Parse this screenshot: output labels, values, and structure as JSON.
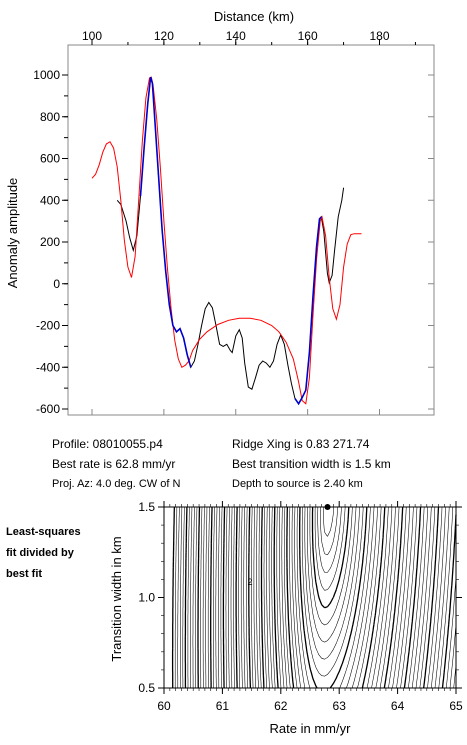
{
  "profile_info": {
    "profile": "Profile: 08010055.p4",
    "best_rate": "Best rate is 62.8 mm/yr",
    "proj_az": "Proj. Az: 4.0 deg. CW of N",
    "ridge_xing": "Ridge Xing is 0.83 271.74",
    "best_width": "Best transition width is 1.5 km",
    "depth": "Depth to source is   2.40 km"
  },
  "side_note": [
    "Least-squares",
    "fit divided by",
    "best fit"
  ],
  "colors": {
    "observed": "#000000",
    "model": "#ff0000",
    "fit_window": "#0000cc",
    "contours": "#000000"
  },
  "chart_data": [
    {
      "type": "line",
      "title": "",
      "xlabel": "Distance (km)",
      "ylabel": "Anomaly amplitude",
      "xlim": [
        90,
        190
      ],
      "ylim": [
        -650,
        1050
      ],
      "x_ticks": [
        100,
        120,
        140,
        160,
        180
      ],
      "y_ticks": [
        1000,
        800,
        600,
        400,
        200,
        0,
        -200,
        -400,
        -600
      ],
      "x_axis_position": "top",
      "grid": false,
      "series": [
        {
          "name": "",
          "color": "#000000",
          "points": [
            [
              107.0,
              400
            ],
            [
              108.0,
              380
            ],
            [
              109.5,
              300
            ],
            [
              110.5,
              220
            ],
            [
              111.5,
              160
            ],
            [
              112.5,
              230
            ],
            [
              113.5,
              420
            ],
            [
              114.5,
              650
            ],
            [
              115.5,
              860
            ],
            [
              116.3,
              990
            ],
            [
              116.8,
              960
            ],
            [
              117.5,
              780
            ],
            [
              118.5,
              520
            ],
            [
              119.5,
              260
            ],
            [
              120.5,
              60
            ],
            [
              121.5,
              -100
            ],
            [
              122.5,
              -200
            ],
            [
              123.5,
              -230
            ],
            [
              124.5,
              -215
            ],
            [
              125.5,
              -260
            ],
            [
              126.5,
              -340
            ],
            [
              127.5,
              -400
            ],
            [
              128.5,
              -370
            ],
            [
              129.5,
              -290
            ],
            [
              130.5,
              -200
            ],
            [
              131.5,
              -120
            ],
            [
              132.5,
              -90
            ],
            [
              133.5,
              -115
            ],
            [
              134.5,
              -200
            ],
            [
              135.5,
              -290
            ],
            [
              136.5,
              -300
            ],
            [
              137.5,
              -290
            ],
            [
              138.5,
              -320
            ],
            [
              139.0,
              -330
            ],
            [
              140.0,
              -250
            ],
            [
              141.0,
              -220
            ],
            [
              141.8,
              -260
            ],
            [
              142.5,
              -380
            ],
            [
              143.5,
              -495
            ],
            [
              144.5,
              -505
            ],
            [
              145.5,
              -450
            ],
            [
              146.5,
              -390
            ],
            [
              147.5,
              -370
            ],
            [
              148.5,
              -380
            ],
            [
              149.5,
              -400
            ],
            [
              150.5,
              -370
            ],
            [
              151.5,
              -290
            ],
            [
              152.5,
              -245
            ],
            [
              153.5,
              -290
            ],
            [
              154.5,
              -390
            ],
            [
              155.5,
              -480
            ],
            [
              156.5,
              -550
            ],
            [
              157.5,
              -575
            ],
            [
              158.5,
              -545
            ],
            [
              159.5,
              -510
            ],
            [
              160.5,
              -330
            ],
            [
              161.5,
              -60
            ],
            [
              162.5,
              180
            ],
            [
              163.3,
              310
            ],
            [
              163.8,
              320
            ],
            [
              164.5,
              250
            ],
            [
              165.5,
              50
            ],
            [
              166.0,
              5
            ],
            [
              166.8,
              40
            ],
            [
              167.5,
              160
            ],
            [
              168.5,
              320
            ],
            [
              169.5,
              400
            ],
            [
              170.0,
              460
            ]
          ]
        },
        {
          "name": "",
          "color": "#ff0000",
          "points": [
            [
              100,
              505
            ],
            [
              101.0,
              525
            ],
            [
              102.0,
              570
            ],
            [
              103.0,
              630
            ],
            [
              104.0,
              670
            ],
            [
              105.0,
              680
            ],
            [
              106.0,
              650
            ],
            [
              107.0,
              560
            ],
            [
              108.0,
              400
            ],
            [
              109.0,
              210
            ],
            [
              110.0,
              80
            ],
            [
              111.0,
              30
            ],
            [
              112.0,
              130
            ],
            [
              113.0,
              400
            ],
            [
              114.0,
              680
            ],
            [
              115.0,
              890
            ],
            [
              116.0,
              985
            ],
            [
              116.5,
              990
            ],
            [
              117.0,
              950
            ],
            [
              118.0,
              790
            ],
            [
              119.0,
              560
            ],
            [
              120.0,
              300
            ],
            [
              121.0,
              70
            ],
            [
              122.0,
              -120
            ],
            [
              123.0,
              -270
            ],
            [
              124.0,
              -360
            ],
            [
              125.0,
              -400
            ],
            [
              126.0,
              -390
            ],
            [
              127.0,
              -370
            ],
            [
              128.0,
              -320
            ],
            [
              130.0,
              -265
            ],
            [
              132.0,
              -230
            ],
            [
              135.0,
              -195
            ],
            [
              138.0,
              -175
            ],
            [
              141.0,
              -165
            ],
            [
              144.0,
              -165
            ],
            [
              147.0,
              -175
            ],
            [
              150.0,
              -200
            ],
            [
              152.0,
              -230
            ],
            [
              154.0,
              -280
            ],
            [
              156.0,
              -360
            ],
            [
              157.5,
              -470
            ],
            [
              158.5,
              -560
            ],
            [
              159.5,
              -575
            ],
            [
              160.5,
              -450
            ],
            [
              161.5,
              -150
            ],
            [
              162.5,
              120
            ],
            [
              163.5,
              300
            ],
            [
              164.0,
              320
            ],
            [
              165.0,
              230
            ],
            [
              166.0,
              30
            ],
            [
              167.0,
              -120
            ],
            [
              168.0,
              -170
            ],
            [
              169.0,
              -100
            ],
            [
              170.0,
              80
            ],
            [
              171.0,
              190
            ],
            [
              172.0,
              235
            ],
            [
              173.0,
              240
            ],
            [
              174.0,
              240
            ],
            [
              175.0,
              240
            ]
          ]
        },
        {
          "name": "",
          "color": "#0000cc",
          "points": [
            [
              113.5,
              420
            ],
            [
              114.5,
              650
            ],
            [
              115.5,
              860
            ],
            [
              116.3,
              990
            ],
            [
              116.8,
              960
            ],
            [
              117.5,
              780
            ],
            [
              118.5,
              520
            ],
            [
              119.5,
              260
            ],
            [
              120.5,
              60
            ],
            [
              121.5,
              -100
            ],
            [
              122.5,
              -200
            ],
            [
              123.5,
              -230
            ],
            [
              124.5,
              -215
            ],
            [
              125.5,
              -260
            ],
            [
              126.5,
              -340
            ],
            [
              127.5,
              -400
            ]
          ]
        },
        {
          "name": "",
          "color": "#0000cc",
          "points": [
            [
              156.5,
              -550
            ],
            [
              157.5,
              -575
            ],
            [
              158.5,
              -545
            ],
            [
              159.5,
              -510
            ],
            [
              160.5,
              -330
            ],
            [
              161.5,
              -60
            ],
            [
              162.5,
              180
            ],
            [
              163.3,
              310
            ],
            [
              163.8,
              320
            ]
          ]
        }
      ]
    },
    {
      "type": "contour",
      "title": "",
      "xlabel": "Rate in mm/yr",
      "ylabel": "Transition width in km",
      "xlim": [
        60,
        65
      ],
      "ylim": [
        0.5,
        1.5
      ],
      "x_ticks": [
        60,
        61,
        62,
        63,
        64,
        65
      ],
      "y_ticks": [
        0.5,
        1.0,
        1.5
      ],
      "best_fit": {
        "rate": 62.8,
        "width": 1.5
      },
      "contour_label": "2",
      "grid": false
    }
  ]
}
